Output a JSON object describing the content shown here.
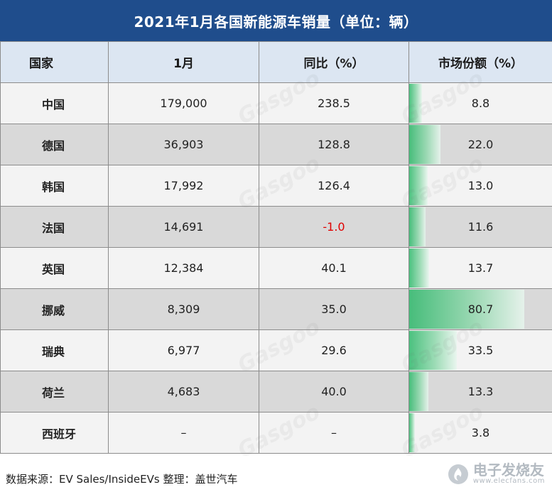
{
  "title": "2021年1月各国新能源车销量（单位：辆）",
  "headers": [
    "国家",
    "1月",
    "同比（%）",
    "市场份额（%）"
  ],
  "rows": [
    {
      "country": "中国",
      "jan": "179,000",
      "yoy": "238.5",
      "yoy_negative": false,
      "share": "8.8",
      "share_value": 8.8
    },
    {
      "country": "德国",
      "jan": "36,903",
      "yoy": "128.8",
      "yoy_negative": false,
      "share": "22.0",
      "share_value": 22.0
    },
    {
      "country": "韩国",
      "jan": "17,992",
      "yoy": "126.4",
      "yoy_negative": false,
      "share": "13.0",
      "share_value": 13.0
    },
    {
      "country": "法国",
      "jan": "14,691",
      "yoy": "-1.0",
      "yoy_negative": true,
      "share": "11.6",
      "share_value": 11.6
    },
    {
      "country": "英国",
      "jan": "12,384",
      "yoy": "40.1",
      "yoy_negative": false,
      "share": "13.7",
      "share_value": 13.7
    },
    {
      "country": "挪威",
      "jan": "8,309",
      "yoy": "35.0",
      "yoy_negative": false,
      "share": "80.7",
      "share_value": 80.7
    },
    {
      "country": "瑞典",
      "jan": "6,977",
      "yoy": "29.6",
      "yoy_negative": false,
      "share": "33.5",
      "share_value": 33.5
    },
    {
      "country": "荷兰",
      "jan": "4,683",
      "yoy": "40.0",
      "yoy_negative": false,
      "share": "13.3",
      "share_value": 13.3
    },
    {
      "country": "西班牙",
      "jan": "–",
      "yoy": "–",
      "yoy_negative": false,
      "share": "3.8",
      "share_value": 3.8
    }
  ],
  "share_scale_max": 100,
  "footer": {
    "source": "数据来源：EV Sales/InsideEVs 整理：盖世汽车"
  },
  "logo": {
    "text": "电子发烧友",
    "sub": "www.elecfans.com"
  },
  "watermark": "Gasgoo",
  "colors": {
    "header_bg": "#1f4d8c",
    "negative": "#e00000",
    "bar": "#2db86a"
  }
}
